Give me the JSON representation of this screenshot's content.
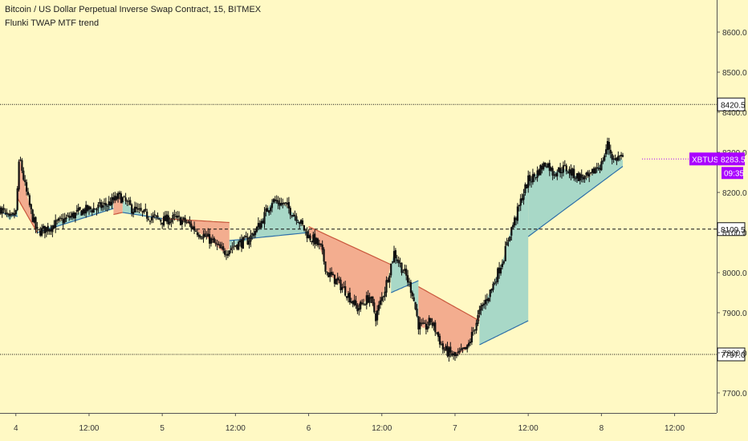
{
  "header": {
    "title": "Bitcoin / US Dollar Perpetual Inverse Swap Contract, 15, BITMEX",
    "indicator": "Flunki TWAP MTF trend"
  },
  "colors": {
    "background": "#fff9c4",
    "candle": "#111111",
    "bull_fill": "#9fd4c8",
    "bear_fill": "#f2a48a",
    "bull_line": "#2e6fa8",
    "bear_line": "#c9583d",
    "symbol_tag": "#aa00ff",
    "level_line": "#111111"
  },
  "chart_data": {
    "type": "candlestick",
    "symbol_label": "XBTUSD",
    "last_price": "8283.5",
    "countdown": "09:35",
    "y_ticks": [
      "8600.0",
      "8500.0",
      "8400.0",
      "8300.0",
      "8200.0",
      "8100.0",
      "8000.0",
      "7900.0",
      "7800.0",
      "7700.0"
    ],
    "y_tick_values": [
      8600,
      8500,
      8400,
      8300,
      8200,
      8100,
      8000,
      7900,
      7800,
      7700
    ],
    "ylim": [
      7650,
      8680
    ],
    "x_ticks": [
      "4",
      "12:00",
      "5",
      "12:00",
      "6",
      "12:00",
      "7",
      "12:00",
      "8",
      "12:00"
    ],
    "x_tick_hours": [
      0,
      12,
      24,
      36,
      48,
      60,
      72,
      84,
      96,
      108
    ],
    "xlim_hours": [
      -2.6,
      114.9
    ],
    "levels": [
      {
        "price": 8420.5,
        "label": "8420.5",
        "style": "dotted"
      },
      {
        "price": 8109.5,
        "label": "8109.5",
        "style": "dashed"
      },
      {
        "price": 7797.0,
        "label": "7797.0",
        "style": "dotted"
      }
    ],
    "price_path_hours": [
      -2.5,
      -1.0,
      0.0,
      0.6,
      1.5,
      2.5,
      3.5,
      5,
      7,
      9,
      11,
      13,
      15,
      17,
      19,
      21,
      23,
      24,
      26,
      28,
      30,
      32,
      34,
      36,
      38,
      40,
      42,
      44,
      46,
      48,
      49,
      50,
      51,
      52.5,
      54,
      56,
      58,
      59,
      60.5,
      62,
      64,
      65,
      66,
      67,
      68,
      69,
      70,
      72,
      73,
      74,
      75,
      76,
      78,
      80,
      81,
      82,
      83,
      84,
      85,
      86,
      87,
      88,
      90,
      92,
      94,
      95,
      96,
      97,
      98,
      99,
      99.5
    ],
    "price_path": [
      8160,
      8130,
      8150,
      8290,
      8215,
      8150,
      8100,
      8110,
      8125,
      8140,
      8155,
      8160,
      8170,
      8190,
      8160,
      8145,
      8135,
      8130,
      8135,
      8125,
      8100,
      8080,
      8050,
      8070,
      8080,
      8120,
      8180,
      8170,
      8140,
      8090,
      8080,
      8060,
      8000,
      7980,
      7955,
      7910,
      7940,
      7890,
      7960,
      8050,
      7990,
      7950,
      7870,
      7860,
      7880,
      7850,
      7810,
      7790,
      7800,
      7810,
      7855,
      7900,
      7960,
      8040,
      8100,
      8140,
      8190,
      8230,
      8240,
      8260,
      8275,
      8250,
      8260,
      8240,
      8235,
      8260,
      8270,
      8320,
      8280,
      8290,
      8280
    ],
    "twap_segments": [
      {
        "trend": "bull",
        "hours": [
          -2.5,
          0.3
        ],
        "prices": [
          8150,
          8140
        ]
      },
      {
        "trend": "bear",
        "hours": [
          0.3,
          3.5
        ],
        "prices": [
          8185,
          8100
        ]
      },
      {
        "trend": "bull",
        "hours": [
          3.5,
          16
        ],
        "prices": [
          8100,
          8160
        ]
      },
      {
        "trend": "bear",
        "hours": [
          16,
          17.5
        ],
        "prices": [
          8145,
          8150
        ]
      },
      {
        "trend": "bull",
        "hours": [
          17.5,
          24
        ],
        "prices": [
          8150,
          8135
        ]
      },
      {
        "trend": "bear",
        "hours": [
          24,
          35
        ],
        "prices": [
          8135,
          8125
        ]
      },
      {
        "trend": "bull",
        "hours": [
          35,
          48
        ],
        "prices": [
          8080,
          8100
        ]
      },
      {
        "trend": "bear",
        "hours": [
          48,
          61.5
        ],
        "prices": [
          8115,
          8020
        ]
      },
      {
        "trend": "bull",
        "hours": [
          61.5,
          66
        ],
        "prices": [
          7950,
          7980
        ]
      },
      {
        "trend": "bear",
        "hours": [
          66,
          76
        ],
        "prices": [
          7965,
          7880
        ]
      },
      {
        "trend": "bull",
        "hours": [
          76,
          84
        ],
        "prices": [
          7820,
          7880
        ]
      },
      {
        "trend": "bull",
        "hours": [
          84,
          99.5
        ],
        "prices": [
          8090,
          8265
        ]
      }
    ]
  }
}
